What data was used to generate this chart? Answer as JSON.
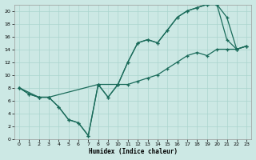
{
  "xlabel": "Humidex (Indice chaleur)",
  "bg_color": "#cce8e4",
  "grid_color": "#aad4ce",
  "line_color": "#1a6b5a",
  "xlim": [
    -0.5,
    23.5
  ],
  "ylim": [
    0,
    21
  ],
  "xticks": [
    0,
    1,
    2,
    3,
    4,
    5,
    6,
    7,
    8,
    9,
    10,
    11,
    12,
    13,
    14,
    15,
    16,
    17,
    18,
    19,
    20,
    21,
    22,
    23
  ],
  "yticks": [
    0,
    2,
    4,
    6,
    8,
    10,
    12,
    14,
    16,
    18,
    20
  ],
  "line1": {
    "x": [
      0,
      1,
      2,
      3,
      4,
      5,
      6,
      7,
      8,
      9,
      10,
      11,
      12,
      13,
      14,
      15,
      16,
      17,
      18,
      19,
      20,
      21,
      22,
      23
    ],
    "y": [
      8,
      7,
      6.5,
      6.5,
      5,
      3,
      2.5,
      0.5,
      8.5,
      6.5,
      8.5,
      12,
      15,
      15.5,
      15,
      17,
      19,
      20,
      20.5,
      21,
      21,
      15.5,
      14,
      14.5
    ]
  },
  "line2": {
    "x": [
      0,
      1,
      2,
      3,
      4,
      5,
      6,
      7,
      8,
      9,
      10,
      11,
      12,
      13,
      14,
      15,
      16,
      17,
      18,
      19,
      20,
      21,
      22,
      23
    ],
    "y": [
      8,
      7,
      6.5,
      6.5,
      5,
      3,
      2.5,
      0.5,
      8.5,
      6.5,
      8.5,
      12,
      15,
      15.5,
      15,
      17,
      19,
      20,
      20.5,
      21,
      21,
      19,
      14,
      14.5
    ]
  },
  "line3": {
    "x": [
      0,
      2,
      3,
      8,
      10,
      11,
      12,
      13,
      14,
      15,
      16,
      17,
      18,
      19,
      20,
      21,
      22,
      23
    ],
    "y": [
      8,
      6.5,
      6.5,
      8.5,
      8.5,
      8.5,
      9,
      9.5,
      10,
      11,
      12,
      13,
      13.5,
      13,
      14,
      14,
      14,
      14.5
    ]
  },
  "figsize": [
    3.2,
    2.0
  ],
  "dpi": 100
}
